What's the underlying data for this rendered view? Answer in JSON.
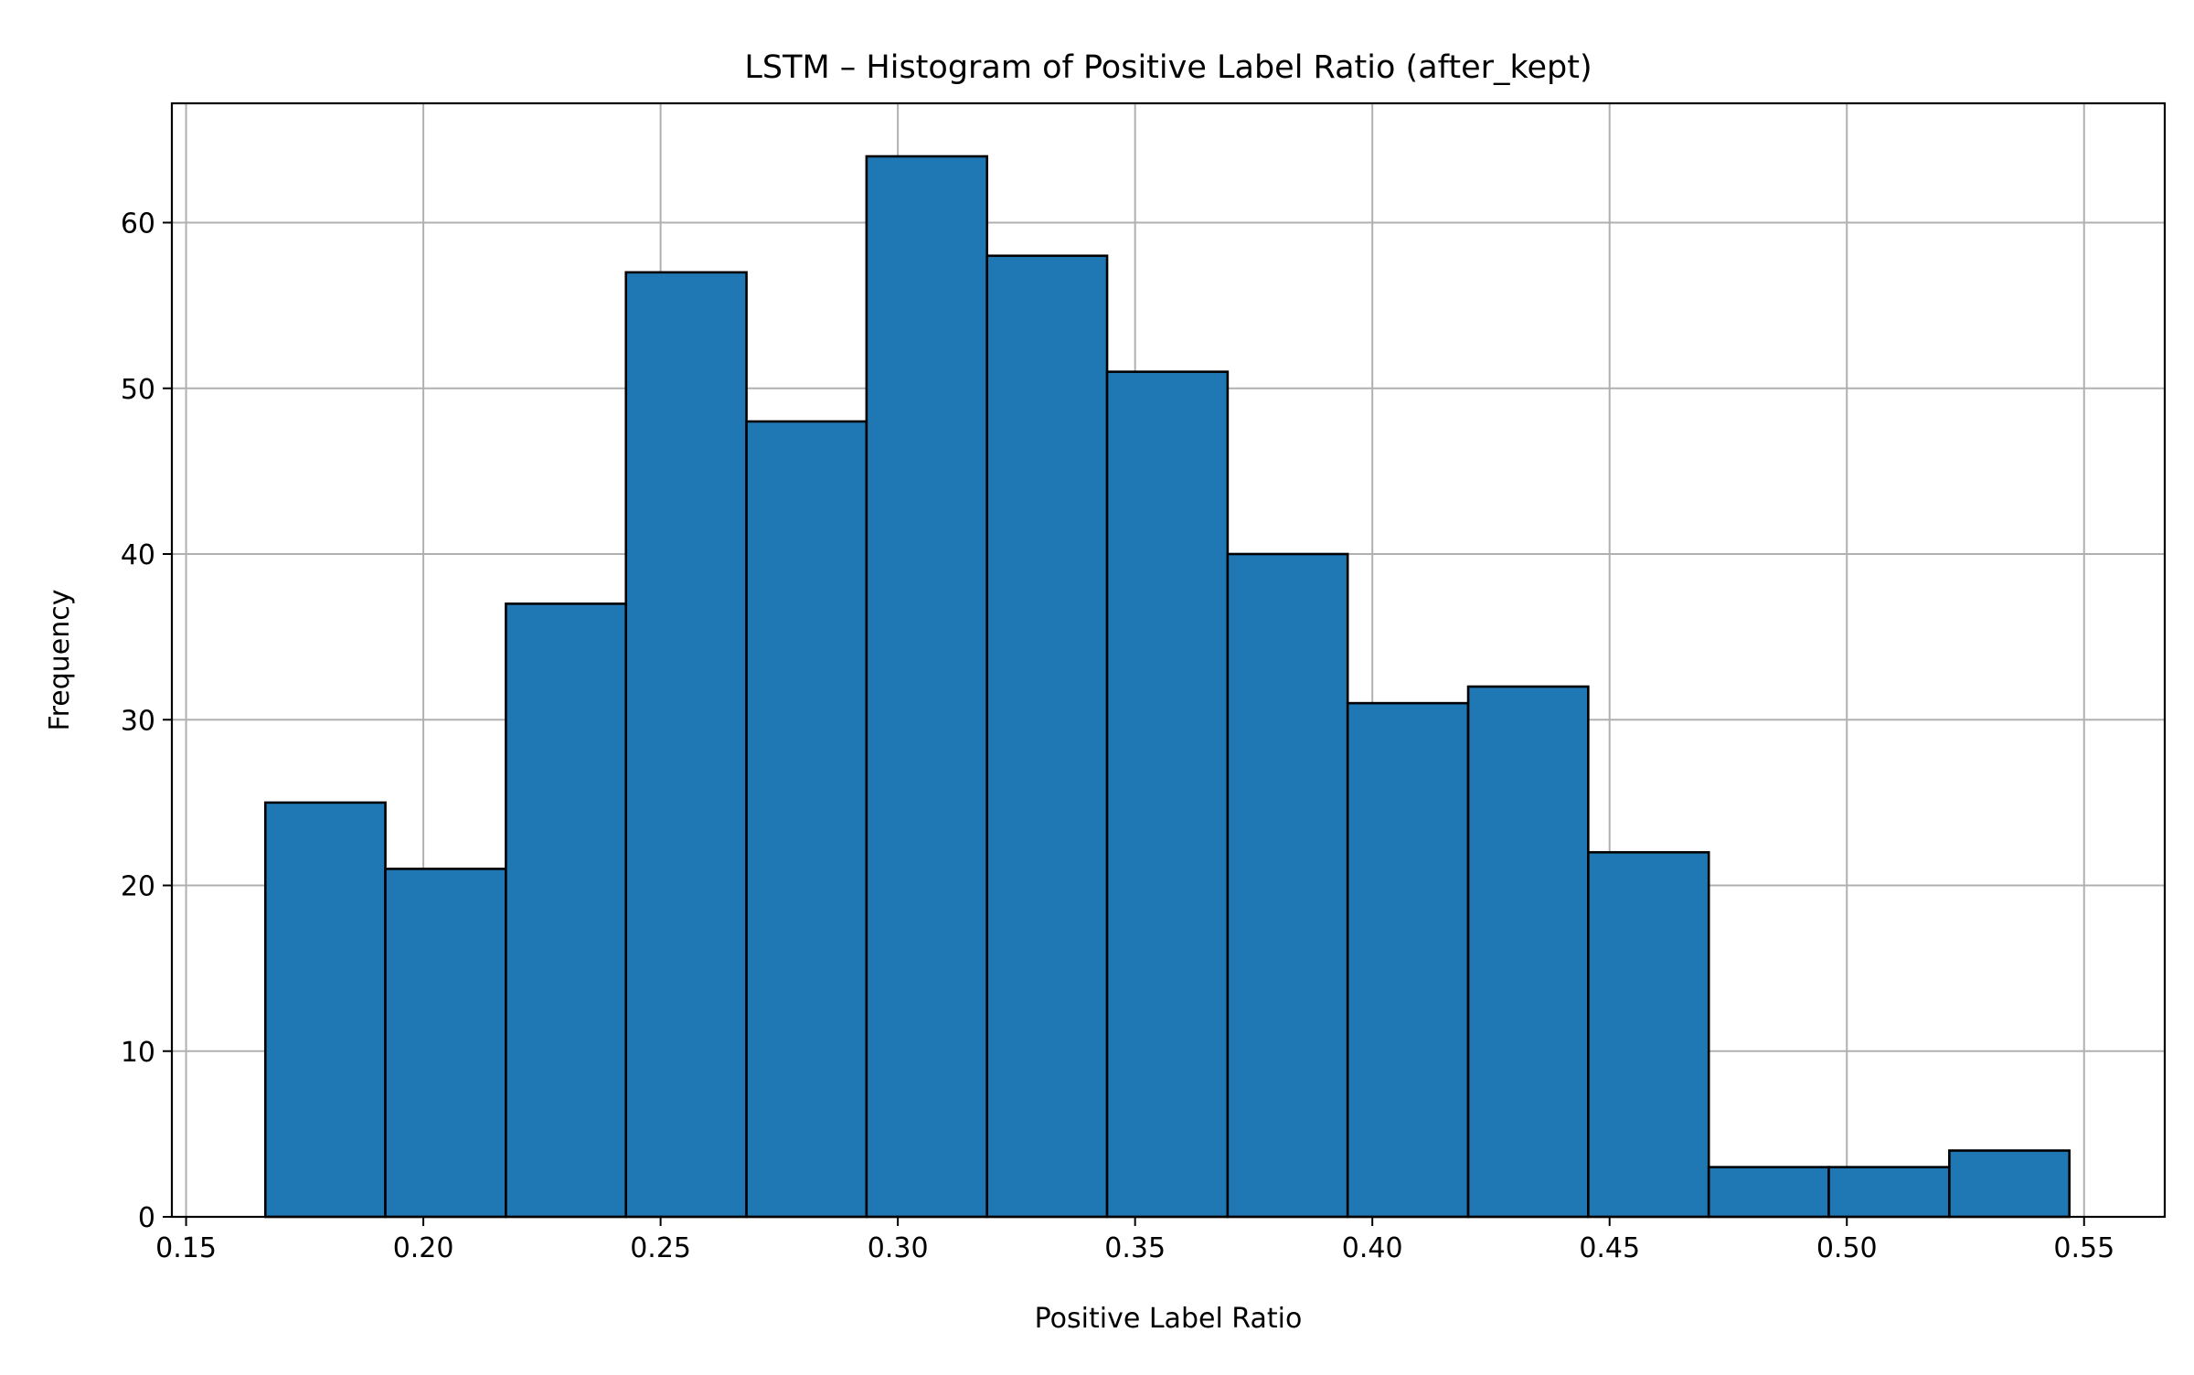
{
  "chart_data": {
    "type": "bar",
    "title": "LSTM – Histogram of Positive Label Ratio (after_kept)",
    "xlabel": "Positive Label Ratio",
    "ylabel": "Frequency",
    "xlim": [
      0.147,
      0.567
    ],
    "ylim": [
      0,
      67.2
    ],
    "x_ticks": [
      0.15,
      0.2,
      0.25,
      0.3,
      0.35,
      0.4,
      0.45,
      0.5,
      0.55
    ],
    "x_tick_labels": [
      "0.15",
      "0.20",
      "0.25",
      "0.30",
      "0.35",
      "0.40",
      "0.45",
      "0.50",
      "0.55"
    ],
    "y_ticks": [
      0,
      10,
      20,
      30,
      40,
      50,
      60
    ],
    "y_tick_labels": [
      "0",
      "10",
      "20",
      "30",
      "40",
      "50",
      "60"
    ],
    "bin_edges": [
      0.1667,
      0.192,
      0.2174,
      0.2427,
      0.2681,
      0.2934,
      0.3188,
      0.3441,
      0.3695,
      0.3948,
      0.4202,
      0.4455,
      0.4709,
      0.4962,
      0.5216,
      0.5469
    ],
    "values": [
      25,
      21,
      37,
      57,
      48,
      64,
      58,
      51,
      40,
      31,
      32,
      22,
      3,
      3,
      4
    ],
    "grid": true,
    "bar_color": "#1f77b4",
    "edge_color": "#000000",
    "grid_color": "#b0b0b0"
  }
}
